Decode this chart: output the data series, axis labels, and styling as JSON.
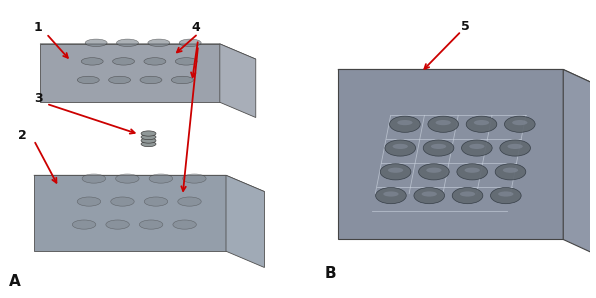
{
  "figure_background": "#ffffff",
  "panel_A_background": "#c8cfd8",
  "panel_B_background": "#c8cfd8",
  "arrow_color": "#cc0000",
  "upper_plate_color": "#b8bec8",
  "upper_plate_dark": "#9ca2ac",
  "upper_plate_side": "#a8aeb8",
  "lower_plate_color": "#b0bac6",
  "lower_plate_dark": "#949eaa",
  "lower_plate_side": "#a0aab6",
  "assembled_top": "#a8b0bc",
  "assembled_front": "#8890a0",
  "assembled_side": "#9098a8",
  "well_color_A": "#808890",
  "well_color_B": "#606870",
  "well_highlight": "#9098a8",
  "edge_color": "#505050",
  "label_color": "#111111",
  "grid_line_color": "#c8d0dc",
  "spring_color": "#909898"
}
